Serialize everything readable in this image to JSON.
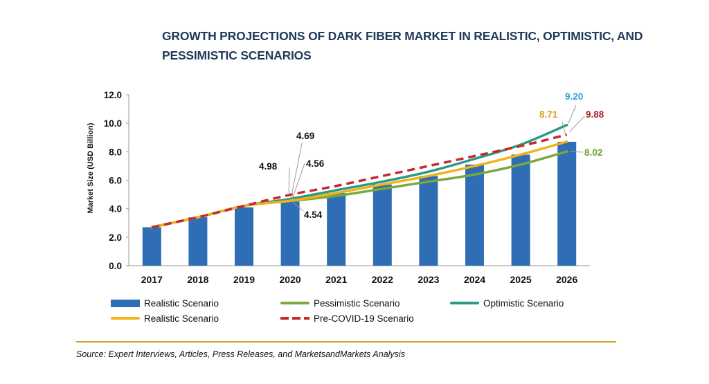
{
  "title_lines": [
    "GROWTH PROJECTIONS OF DARK FIBER MARKET IN REALISTIC, OPTIMISTIC, AND",
    "PESSIMISTIC SCENARIOS"
  ],
  "source": "Source: Expert Interviews, Articles, Press Releases, and MarketsandMarkets Analysis",
  "chart_data": {
    "type": "bar",
    "title": "GROWTH PROJECTIONS OF DARK FIBER MARKET IN REALISTIC, OPTIMISTIC, AND PESSIMISTIC SCENARIOS",
    "ylabel": "Market Size (USD Billion)",
    "xlabel": "",
    "ylim": [
      0,
      12
    ],
    "yticks": [
      "0.0",
      "2.0",
      "4.0",
      "6.0",
      "8.0",
      "10.0",
      "12.0"
    ],
    "categories": [
      "2017",
      "2018",
      "2019",
      "2020",
      "2021",
      "2022",
      "2023",
      "2024",
      "2025",
      "2026"
    ],
    "grid": false,
    "legend_position": "bottom",
    "series": [
      {
        "name": "Realistic Scenario",
        "kind": "bar",
        "color": "#2f6db5",
        "values": [
          2.7,
          3.4,
          4.1,
          4.5,
          5.1,
          5.7,
          6.3,
          7.1,
          7.8,
          8.7
        ]
      },
      {
        "name": "Pessimistic Scenario",
        "kind": "line",
        "color": "#7aa83a",
        "values": [
          2.7,
          3.4,
          4.2,
          4.54,
          4.9,
          5.4,
          5.9,
          6.4,
          7.1,
          8.02
        ]
      },
      {
        "name": "Optimistic Scenario",
        "kind": "line",
        "color": "#2a9a85",
        "values": [
          2.7,
          3.4,
          4.2,
          4.69,
          5.3,
          5.9,
          6.6,
          7.5,
          8.5,
          9.88
        ]
      },
      {
        "name": "Realistic Scenario",
        "kind": "line",
        "color": "#f2b21b",
        "values": [
          2.7,
          3.4,
          4.2,
          4.56,
          5.1,
          5.7,
          6.3,
          7.0,
          7.8,
          8.71
        ]
      },
      {
        "name": "Pre-COVID-19 Scenario",
        "kind": "dashed",
        "color": "#c32a2f",
        "values": [
          2.7,
          3.4,
          4.2,
          4.98,
          5.6,
          6.3,
          7.0,
          7.7,
          8.4,
          9.2
        ]
      }
    ],
    "annotations": [
      {
        "text": "4.69",
        "year": "2020",
        "color": "#111111"
      },
      {
        "text": "4.98",
        "year": "2020",
        "color": "#111111"
      },
      {
        "text": "4.56",
        "year": "2020",
        "color": "#111111"
      },
      {
        "text": "4.54",
        "year": "2020",
        "color": "#111111"
      },
      {
        "text": "9.20",
        "year": "2026",
        "color": "#2aa3d6"
      },
      {
        "text": "8.71",
        "year": "2026",
        "color": "#e0a015"
      },
      {
        "text": "9.88",
        "year": "2026",
        "color": "#b01f27"
      },
      {
        "text": "8.02",
        "year": "2026",
        "color": "#6e9e30"
      }
    ]
  }
}
